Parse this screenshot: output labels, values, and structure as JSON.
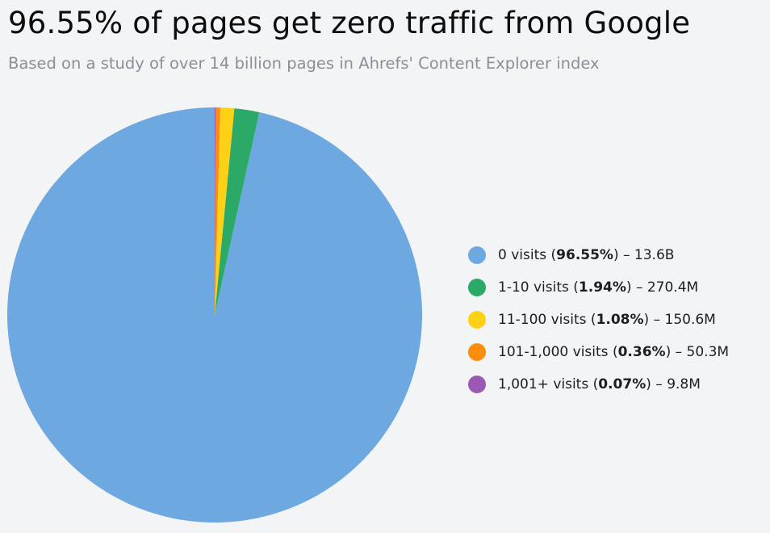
{
  "header": {
    "title": "96.55% of pages get zero traffic from Google",
    "subtitle": "Based on a study of over 14 billion pages in Ahrefs' Content Explorer index"
  },
  "chart_data": {
    "type": "pie",
    "title": "96.55% of pages get zero traffic from Google",
    "subtitle": "Based on a study of over 14 billion pages in Ahrefs' Content Explorer index",
    "legend_position": "right",
    "start_angle": "top",
    "direction": "counterclockwise",
    "slices": [
      {
        "label": "0 visits",
        "percent": 96.55,
        "percent_text": "96.55%",
        "count_text": "13.6B",
        "color": "#6ea8e0"
      },
      {
        "label": "1-10 visits",
        "percent": 1.94,
        "percent_text": "1.94%",
        "count_text": "270.4M",
        "color": "#2aaa66"
      },
      {
        "label": "11-100 visits",
        "percent": 1.08,
        "percent_text": "1.08%",
        "count_text": "150.6M",
        "color": "#fdd116"
      },
      {
        "label": "101-1,000 visits",
        "percent": 0.36,
        "percent_text": "0.36%",
        "count_text": "50.3M",
        "color": "#fb8c0c"
      },
      {
        "label": "1,001+ visits",
        "percent": 0.07,
        "percent_text": "0.07%",
        "count_text": "9.8M",
        "color": "#9b59b6"
      }
    ]
  }
}
